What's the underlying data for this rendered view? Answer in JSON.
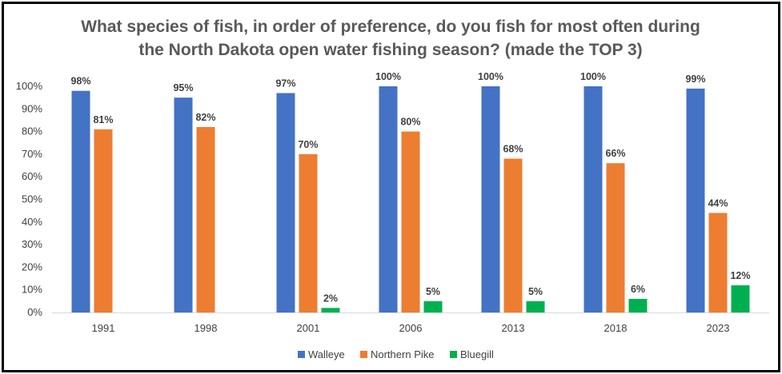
{
  "chart_data": {
    "type": "bar",
    "title": [
      "What species of fish, in order of preference, do you fish for most often during",
      "the North Dakota open water fishing season?   (made the TOP 3)"
    ],
    "categories": [
      "1991",
      "1998",
      "2001",
      "2006",
      "2013",
      "2018",
      "2023"
    ],
    "series": [
      {
        "name": "Walleye",
        "color": "#4472C4",
        "values": [
          98,
          95,
          97,
          100,
          100,
          100,
          99
        ],
        "labels": [
          "98%",
          "95%",
          "97%",
          "100%",
          "100%",
          "100%",
          "99%"
        ]
      },
      {
        "name": "Northern Pike",
        "color": "#ED7D31",
        "values": [
          81,
          82,
          70,
          80,
          68,
          66,
          44
        ],
        "labels": [
          "81%",
          "82%",
          "70%",
          "80%",
          "68%",
          "66%",
          "44%"
        ]
      },
      {
        "name": "Bluegill",
        "color": "#00B050",
        "values": [
          null,
          null,
          2,
          5,
          5,
          6,
          12
        ],
        "labels": [
          null,
          null,
          "2%",
          "5%",
          "5%",
          "6%",
          "12%"
        ]
      }
    ],
    "ylim": [
      0,
      100
    ],
    "yticks": [
      "0%",
      "10%",
      "20%",
      "30%",
      "40%",
      "50%",
      "60%",
      "70%",
      "80%",
      "90%",
      "100%"
    ],
    "xlabel": "",
    "ylabel": "",
    "grid": false,
    "legend": "bottom"
  }
}
